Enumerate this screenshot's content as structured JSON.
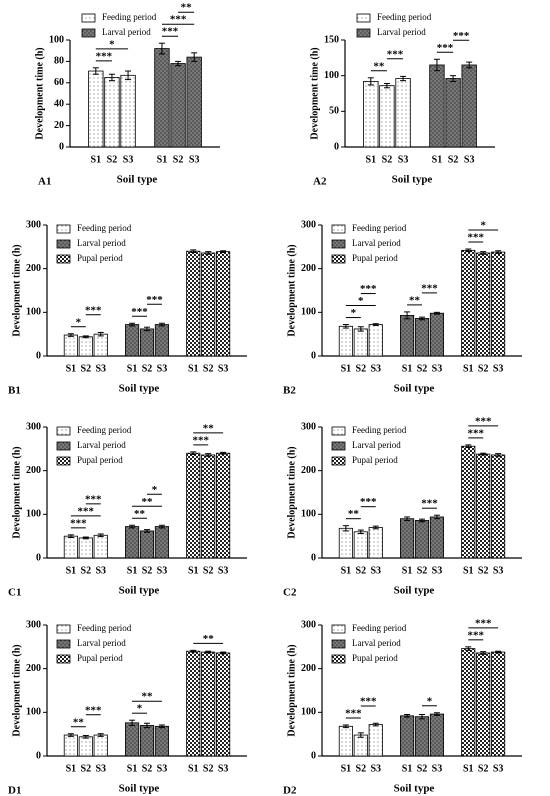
{
  "chart_data": [
    {
      "type": "bar",
      "panel": "A1",
      "ylabel": "Development time (h)",
      "xlabel": "Soil type",
      "categories": [
        "S1",
        "S2",
        "S3"
      ],
      "ylim": [
        0,
        100
      ],
      "yticks": [
        0,
        20,
        40,
        60,
        80,
        100
      ],
      "series": [
        {
          "name": "Feeding period",
          "color": "#ffffff",
          "hatch": "dots",
          "values": [
            71,
            65,
            67
          ],
          "errors": [
            3,
            3,
            4
          ]
        },
        {
          "name": "Larval period",
          "color": "#777777",
          "hatch": "dense",
          "values": [
            92,
            78,
            84
          ],
          "errors": [
            5,
            2,
            4
          ]
        }
      ],
      "annotations": [
        {
          "series": 0,
          "from": 0,
          "to": 1,
          "label": "***"
        },
        {
          "series": 0,
          "from": 0,
          "to": 2,
          "label": "*"
        },
        {
          "series": 1,
          "from": 0,
          "to": 1,
          "label": "***"
        },
        {
          "series": 1,
          "from": 0,
          "to": 2,
          "label": "***"
        },
        {
          "series": 1,
          "from": 1,
          "to": 2,
          "label": "**"
        }
      ]
    },
    {
      "type": "bar",
      "panel": "A2",
      "ylabel": "Development time (h)",
      "xlabel": "Soil type",
      "categories": [
        "S1",
        "S2",
        "S3"
      ],
      "ylim": [
        0,
        150
      ],
      "yticks": [
        0,
        50,
        100,
        150
      ],
      "series": [
        {
          "name": "Feeding period",
          "color": "#ffffff",
          "hatch": "dots",
          "values": [
            92,
            86,
            96
          ],
          "errors": [
            5,
            3,
            3
          ]
        },
        {
          "name": "Larval period",
          "color": "#777777",
          "hatch": "dense",
          "values": [
            115,
            96,
            115
          ],
          "errors": [
            8,
            4,
            4
          ]
        }
      ],
      "annotations": [
        {
          "series": 0,
          "from": 0,
          "to": 1,
          "label": "**"
        },
        {
          "series": 0,
          "from": 1,
          "to": 2,
          "label": "***"
        },
        {
          "series": 1,
          "from": 0,
          "to": 1,
          "label": "***"
        },
        {
          "series": 1,
          "from": 1,
          "to": 2,
          "label": "***"
        }
      ]
    },
    {
      "type": "bar",
      "panel": "B1",
      "ylabel": "Development time (h)",
      "xlabel": "Soil type",
      "categories": [
        "S1",
        "S2",
        "S3"
      ],
      "ylim": [
        0,
        300
      ],
      "yticks": [
        0,
        100,
        200,
        300
      ],
      "series": [
        {
          "name": "Feeding period",
          "color": "#ffffff",
          "hatch": "dots",
          "values": [
            48,
            44,
            50
          ],
          "errors": [
            3,
            2,
            4
          ]
        },
        {
          "name": "Larval period",
          "color": "#777777",
          "hatch": "dense",
          "values": [
            72,
            62,
            72
          ],
          "errors": [
            3,
            4,
            3
          ]
        },
        {
          "name": "Pupal period",
          "color": "#ffffff",
          "hatch": "checker",
          "values": [
            240,
            236,
            239
          ],
          "errors": [
            3,
            3,
            2
          ]
        }
      ],
      "annotations": [
        {
          "series": 0,
          "from": 0,
          "to": 1,
          "label": "*"
        },
        {
          "series": 0,
          "from": 1,
          "to": 2,
          "label": "***"
        },
        {
          "series": 1,
          "from": 0,
          "to": 1,
          "label": "***"
        },
        {
          "series": 1,
          "from": 1,
          "to": 2,
          "label": "***"
        }
      ]
    },
    {
      "type": "bar",
      "panel": "B2",
      "ylabel": "Development time (h)",
      "xlabel": "Soil type",
      "categories": [
        "S1",
        "S2",
        "S3"
      ],
      "ylim": [
        0,
        300
      ],
      "yticks": [
        0,
        100,
        200,
        300
      ],
      "series": [
        {
          "name": "Feeding period",
          "color": "#ffffff",
          "hatch": "dots",
          "values": [
            68,
            62,
            72
          ],
          "errors": [
            4,
            5,
            2
          ]
        },
        {
          "name": "Larval period",
          "color": "#777777",
          "hatch": "dense",
          "values": [
            93,
            86,
            98
          ],
          "errors": [
            8,
            3,
            2
          ]
        },
        {
          "name": "Pupal period",
          "color": "#ffffff",
          "hatch": "checker",
          "values": [
            242,
            236,
            238
          ],
          "errors": [
            3,
            3,
            3
          ]
        }
      ],
      "annotations": [
        {
          "series": 0,
          "from": 0,
          "to": 1,
          "label": "*"
        },
        {
          "series": 0,
          "from": 0,
          "to": 2,
          "label": "*"
        },
        {
          "series": 0,
          "from": 1,
          "to": 2,
          "label": "***"
        },
        {
          "series": 1,
          "from": 0,
          "to": 1,
          "label": "**"
        },
        {
          "series": 1,
          "from": 1,
          "to": 2,
          "label": "***"
        },
        {
          "series": 2,
          "from": 0,
          "to": 1,
          "label": "***"
        },
        {
          "series": 2,
          "from": 0,
          "to": 2,
          "label": "*"
        }
      ]
    },
    {
      "type": "bar",
      "panel": "C1",
      "ylabel": "Development time (h)",
      "xlabel": "Soil type",
      "categories": [
        "S1",
        "S2",
        "S3"
      ],
      "ylim": [
        0,
        300
      ],
      "yticks": [
        0,
        100,
        200,
        300
      ],
      "series": [
        {
          "name": "Feeding period",
          "color": "#ffffff",
          "hatch": "dots",
          "values": [
            50,
            46,
            52
          ],
          "errors": [
            3,
            2,
            3
          ]
        },
        {
          "name": "Larval period",
          "color": "#777777",
          "hatch": "dense",
          "values": [
            72,
            62,
            72
          ],
          "errors": [
            3,
            3,
            3
          ]
        },
        {
          "name": "Pupal period",
          "color": "#ffffff",
          "hatch": "checker",
          "values": [
            240,
            236,
            240
          ],
          "errors": [
            3,
            3,
            2
          ]
        }
      ],
      "annotations": [
        {
          "series": 0,
          "from": 0,
          "to": 1,
          "label": "***"
        },
        {
          "series": 0,
          "from": 0,
          "to": 2,
          "label": "***"
        },
        {
          "series": 0,
          "from": 1,
          "to": 2,
          "label": "***"
        },
        {
          "series": 1,
          "from": 0,
          "to": 1,
          "label": "**"
        },
        {
          "series": 1,
          "from": 0,
          "to": 2,
          "label": "**"
        },
        {
          "series": 1,
          "from": 1,
          "to": 2,
          "label": "*"
        },
        {
          "series": 2,
          "from": 0,
          "to": 1,
          "label": "***"
        },
        {
          "series": 2,
          "from": 0,
          "to": 2,
          "label": "**"
        }
      ]
    },
    {
      "type": "bar",
      "panel": "C2",
      "ylabel": "Development time (h)",
      "xlabel": "Soil type",
      "categories": [
        "S1",
        "S2",
        "S3"
      ],
      "ylim": [
        0,
        300
      ],
      "yticks": [
        0,
        100,
        200,
        300
      ],
      "series": [
        {
          "name": "Feeding period",
          "color": "#ffffff",
          "hatch": "dots",
          "values": [
            68,
            60,
            70
          ],
          "errors": [
            6,
            4,
            3
          ]
        },
        {
          "name": "Larval period",
          "color": "#777777",
          "hatch": "dense",
          "values": [
            90,
            86,
            94
          ],
          "errors": [
            4,
            3,
            4
          ]
        },
        {
          "name": "Pupal period",
          "color": "#ffffff",
          "hatch": "checker",
          "values": [
            256,
            238,
            236
          ],
          "errors": [
            3,
            2,
            3
          ]
        }
      ],
      "annotations": [
        {
          "series": 0,
          "from": 0,
          "to": 1,
          "label": "**"
        },
        {
          "series": 0,
          "from": 1,
          "to": 2,
          "label": "***"
        },
        {
          "series": 1,
          "from": 1,
          "to": 2,
          "label": "***"
        },
        {
          "series": 2,
          "from": 0,
          "to": 1,
          "label": "***"
        },
        {
          "series": 2,
          "from": 0,
          "to": 2,
          "label": "***"
        }
      ]
    },
    {
      "type": "bar",
      "panel": "D1",
      "ylabel": "Development time (h)",
      "xlabel": "Soil type",
      "categories": [
        "S1",
        "S2",
        "S3"
      ],
      "ylim": [
        0,
        300
      ],
      "yticks": [
        0,
        100,
        200,
        300
      ],
      "series": [
        {
          "name": "Feeding period",
          "color": "#ffffff",
          "hatch": "dots",
          "values": [
            48,
            44,
            48
          ],
          "errors": [
            3,
            3,
            3
          ]
        },
        {
          "name": "Larval period",
          "color": "#777777",
          "hatch": "dense",
          "values": [
            76,
            70,
            68
          ],
          "errors": [
            6,
            5,
            3
          ]
        },
        {
          "name": "Pupal period",
          "color": "#ffffff",
          "hatch": "checker",
          "values": [
            240,
            238,
            236
          ],
          "errors": [
            2,
            2,
            2
          ]
        }
      ],
      "annotations": [
        {
          "series": 0,
          "from": 0,
          "to": 1,
          "label": "**"
        },
        {
          "series": 0,
          "from": 1,
          "to": 2,
          "label": "***"
        },
        {
          "series": 1,
          "from": 0,
          "to": 1,
          "label": "*"
        },
        {
          "series": 1,
          "from": 0,
          "to": 2,
          "label": "**"
        },
        {
          "series": 2,
          "from": 0,
          "to": 2,
          "label": "**"
        }
      ]
    },
    {
      "type": "bar",
      "panel": "D2",
      "ylabel": "Development time (h)",
      "xlabel": "Soil type",
      "categories": [
        "S1",
        "S2",
        "S3"
      ],
      "ylim": [
        0,
        300
      ],
      "yticks": [
        0,
        100,
        200,
        300
      ],
      "series": [
        {
          "name": "Feeding period",
          "color": "#ffffff",
          "hatch": "dots",
          "values": [
            68,
            48,
            72
          ],
          "errors": [
            3,
            5,
            3
          ]
        },
        {
          "name": "Larval period",
          "color": "#777777",
          "hatch": "dense",
          "values": [
            92,
            90,
            96
          ],
          "errors": [
            3,
            5,
            3
          ]
        },
        {
          "name": "Pupal period",
          "color": "#ffffff",
          "hatch": "checker",
          "values": [
            246,
            236,
            238
          ],
          "errors": [
            4,
            3,
            2
          ]
        }
      ],
      "annotations": [
        {
          "series": 0,
          "from": 0,
          "to": 1,
          "label": "***"
        },
        {
          "series": 0,
          "from": 1,
          "to": 2,
          "label": "***"
        },
        {
          "series": 1,
          "from": 1,
          "to": 2,
          "label": "*"
        },
        {
          "series": 2,
          "from": 0,
          "to": 1,
          "label": "***"
        },
        {
          "series": 2,
          "from": 0,
          "to": 2,
          "label": "***"
        }
      ]
    }
  ]
}
